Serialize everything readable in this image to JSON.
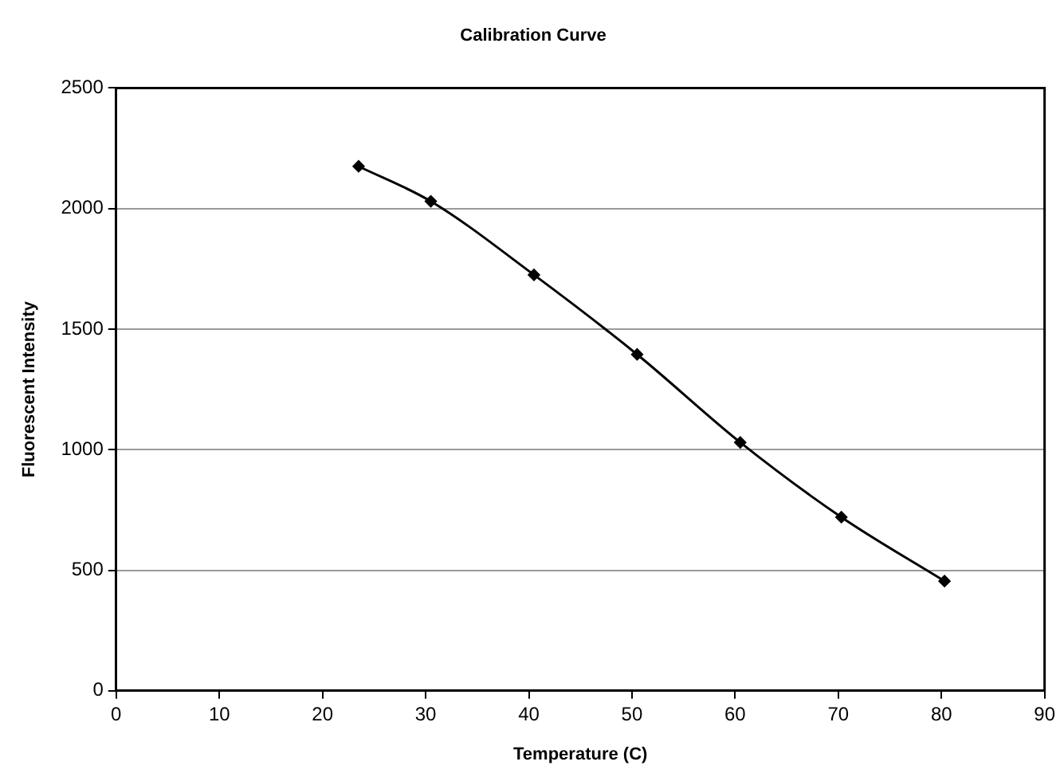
{
  "chart_data": {
    "type": "line",
    "title": "Calibration Curve",
    "xlabel": "Temperature (C)",
    "ylabel": "Fluorescent Intensity",
    "x": [
      23.5,
      30.5,
      40.5,
      50.5,
      60.5,
      70.3,
      80.3
    ],
    "series": [
      {
        "color": "#000000",
        "values": [
          2175,
          2030,
          1725,
          1395,
          1030,
          720,
          455
        ]
      }
    ],
    "xlim": [
      0,
      90
    ],
    "xticks": [
      0,
      10,
      20,
      30,
      40,
      50,
      60,
      70,
      80,
      90
    ],
    "ylim": [
      0,
      2500
    ],
    "yticks": [
      0,
      500,
      1000,
      1500,
      2000,
      2500
    ],
    "grid": "y",
    "legend": false,
    "marker": "diamond",
    "line_style": "solid"
  }
}
